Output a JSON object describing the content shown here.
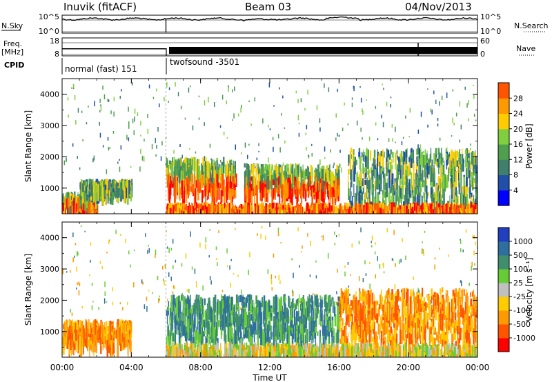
{
  "header": {
    "station": "Inuvik (fitACF)",
    "beam": "Beam 03",
    "date": "04/Nov/2013"
  },
  "noise_panel": {
    "left_label": "N.Sky",
    "right_label": "N.Search",
    "left_ticks": [
      "10^5",
      "10^0"
    ],
    "right_ticks": [
      "10^5",
      "10^0"
    ]
  },
  "freq_panel": {
    "left_label_1": "Freq.",
    "left_label_2": "[MHz]",
    "right_label": "Nave",
    "left_ticks": [
      "18",
      "8"
    ],
    "right_ticks": [
      "60",
      "0"
    ]
  },
  "cpid_panel": {
    "label": "CPID",
    "segments": [
      {
        "name": "normal (fast) 151",
        "start": "00:00",
        "end": "06:00"
      },
      {
        "name": "twofsound -3501",
        "start": "06:00",
        "end": "24:00"
      }
    ]
  },
  "chart_data": [
    {
      "type": "heatmap",
      "title": "",
      "parameter": "Power",
      "ylabel": "Slant Range [km]",
      "ylim": [
        180,
        4500
      ],
      "yticks": [
        "4000",
        "3000",
        "2000",
        "1000"
      ],
      "colorbar_label": "Power [dB]",
      "colorbar_ticks": [
        "28",
        "24",
        "20",
        "16",
        "12",
        "8",
        "4"
      ],
      "colorscale": [
        "#0000ff",
        "#1f4fa8",
        "#3f7f6c",
        "#4f9f4f",
        "#7fcf3f",
        "#ffcc00",
        "#ff9900",
        "#ff5500",
        "#ff0000"
      ],
      "approx_scatter_bands": [
        {
          "x": [
            "00:00",
            "02:00"
          ],
          "y": [
            500,
            900
          ],
          "level": "high"
        },
        {
          "x": [
            "01:00",
            "04:00"
          ],
          "y": [
            1000,
            1300
          ],
          "level": "moderate"
        },
        {
          "x": [
            "06:00",
            "10:00"
          ],
          "y": [
            900,
            2000
          ],
          "level": "high"
        },
        {
          "x": [
            "10:30",
            "16:00"
          ],
          "y": [
            900,
            1800
          ],
          "level": "high"
        },
        {
          "x": [
            "16:30",
            "24:00"
          ],
          "y": [
            400,
            2300
          ],
          "level": "moderate"
        }
      ]
    },
    {
      "type": "heatmap",
      "title": "",
      "parameter": "Velocity",
      "ylabel": "Slant Range [km]",
      "ylim": [
        180,
        4500
      ],
      "yticks": [
        "4000",
        "3000",
        "2000",
        "1000"
      ],
      "xlabel": "Time UT",
      "xticks": [
        "00:00",
        "04:00",
        "08:00",
        "12:00",
        "16:00",
        "20:00",
        "00:00"
      ],
      "colorbar_label": "Velocity [m s⁻¹]",
      "colorbar_ticks": [
        "1000",
        "500",
        "100",
        "25",
        "-25",
        "-100",
        "-500",
        "-1000"
      ],
      "colorscale": [
        "#2040c0",
        "#2f6f9f",
        "#3f8f6f",
        "#66cc33",
        "#c0c0c0",
        "#ffcc00",
        "#ff9900",
        "#ff5500",
        "#ff0000"
      ],
      "approx_scatter_bands": [
        {
          "x": [
            "00:00",
            "04:00"
          ],
          "y": [
            700,
            1400
          ],
          "level": "negative"
        },
        {
          "x": [
            "06:00",
            "16:00"
          ],
          "y": [
            800,
            2200
          ],
          "level": "positive"
        },
        {
          "x": [
            "16:00",
            "24:00"
          ],
          "y": [
            700,
            2400
          ],
          "level": "negative"
        }
      ]
    }
  ]
}
